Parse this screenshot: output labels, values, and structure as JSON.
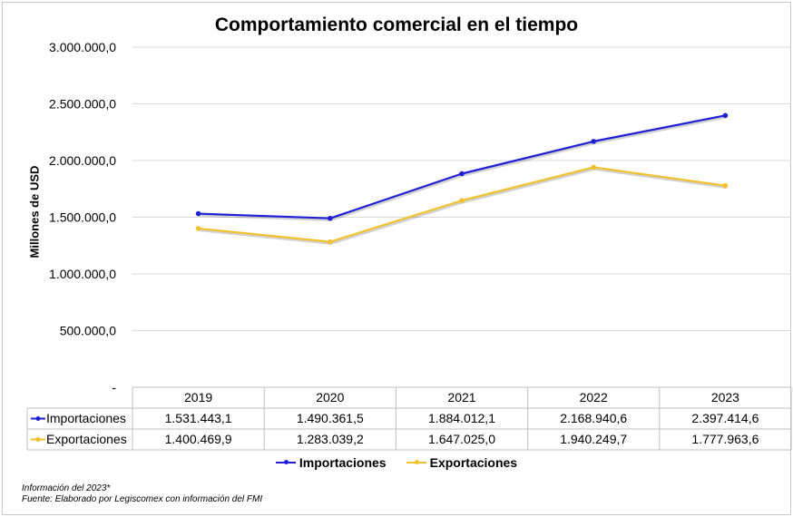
{
  "chart_data": {
    "type": "line",
    "title": "Comportamiento comercial en el tiempo",
    "ylabel": "Millones de USD",
    "xlabel": "",
    "categories": [
      "2019",
      "2020",
      "2021",
      "2022",
      "2023"
    ],
    "ylim": [
      0,
      3000000
    ],
    "yticks": [
      0,
      500000,
      1000000,
      1500000,
      2000000,
      2500000,
      3000000
    ],
    "ytick_labels": [
      "-",
      "500.000,0",
      "1.000.000,0",
      "1.500.000,0",
      "2.000.000,0",
      "2.500.000,0",
      "3.000.000,0"
    ],
    "grid": true,
    "legend": "bottom",
    "series": [
      {
        "name": "Importaciones",
        "color": "#1f1fd6",
        "values": [
          1531443.1,
          1490361.5,
          1884012.1,
          2168940.6,
          2397414.6
        ],
        "labels": [
          "1.531.443,1",
          "1.490.361,5",
          "1.884.012,1",
          "2.168.940,6",
          "2.397.414,6"
        ]
      },
      {
        "name": "Exportaciones",
        "color": "#f2c12e",
        "values": [
          1400469.9,
          1283039.2,
          1647025.0,
          1940249.7,
          1777963.6
        ],
        "labels": [
          "1.400.469,9",
          "1.283.039,2",
          "1.647.025,0",
          "1.940.249,7",
          "1.777.963,6"
        ]
      }
    ]
  },
  "footer": {
    "note": "Información del 2023*",
    "source": "Fuente: Elaborado por Legiscomex con información del FMI"
  }
}
